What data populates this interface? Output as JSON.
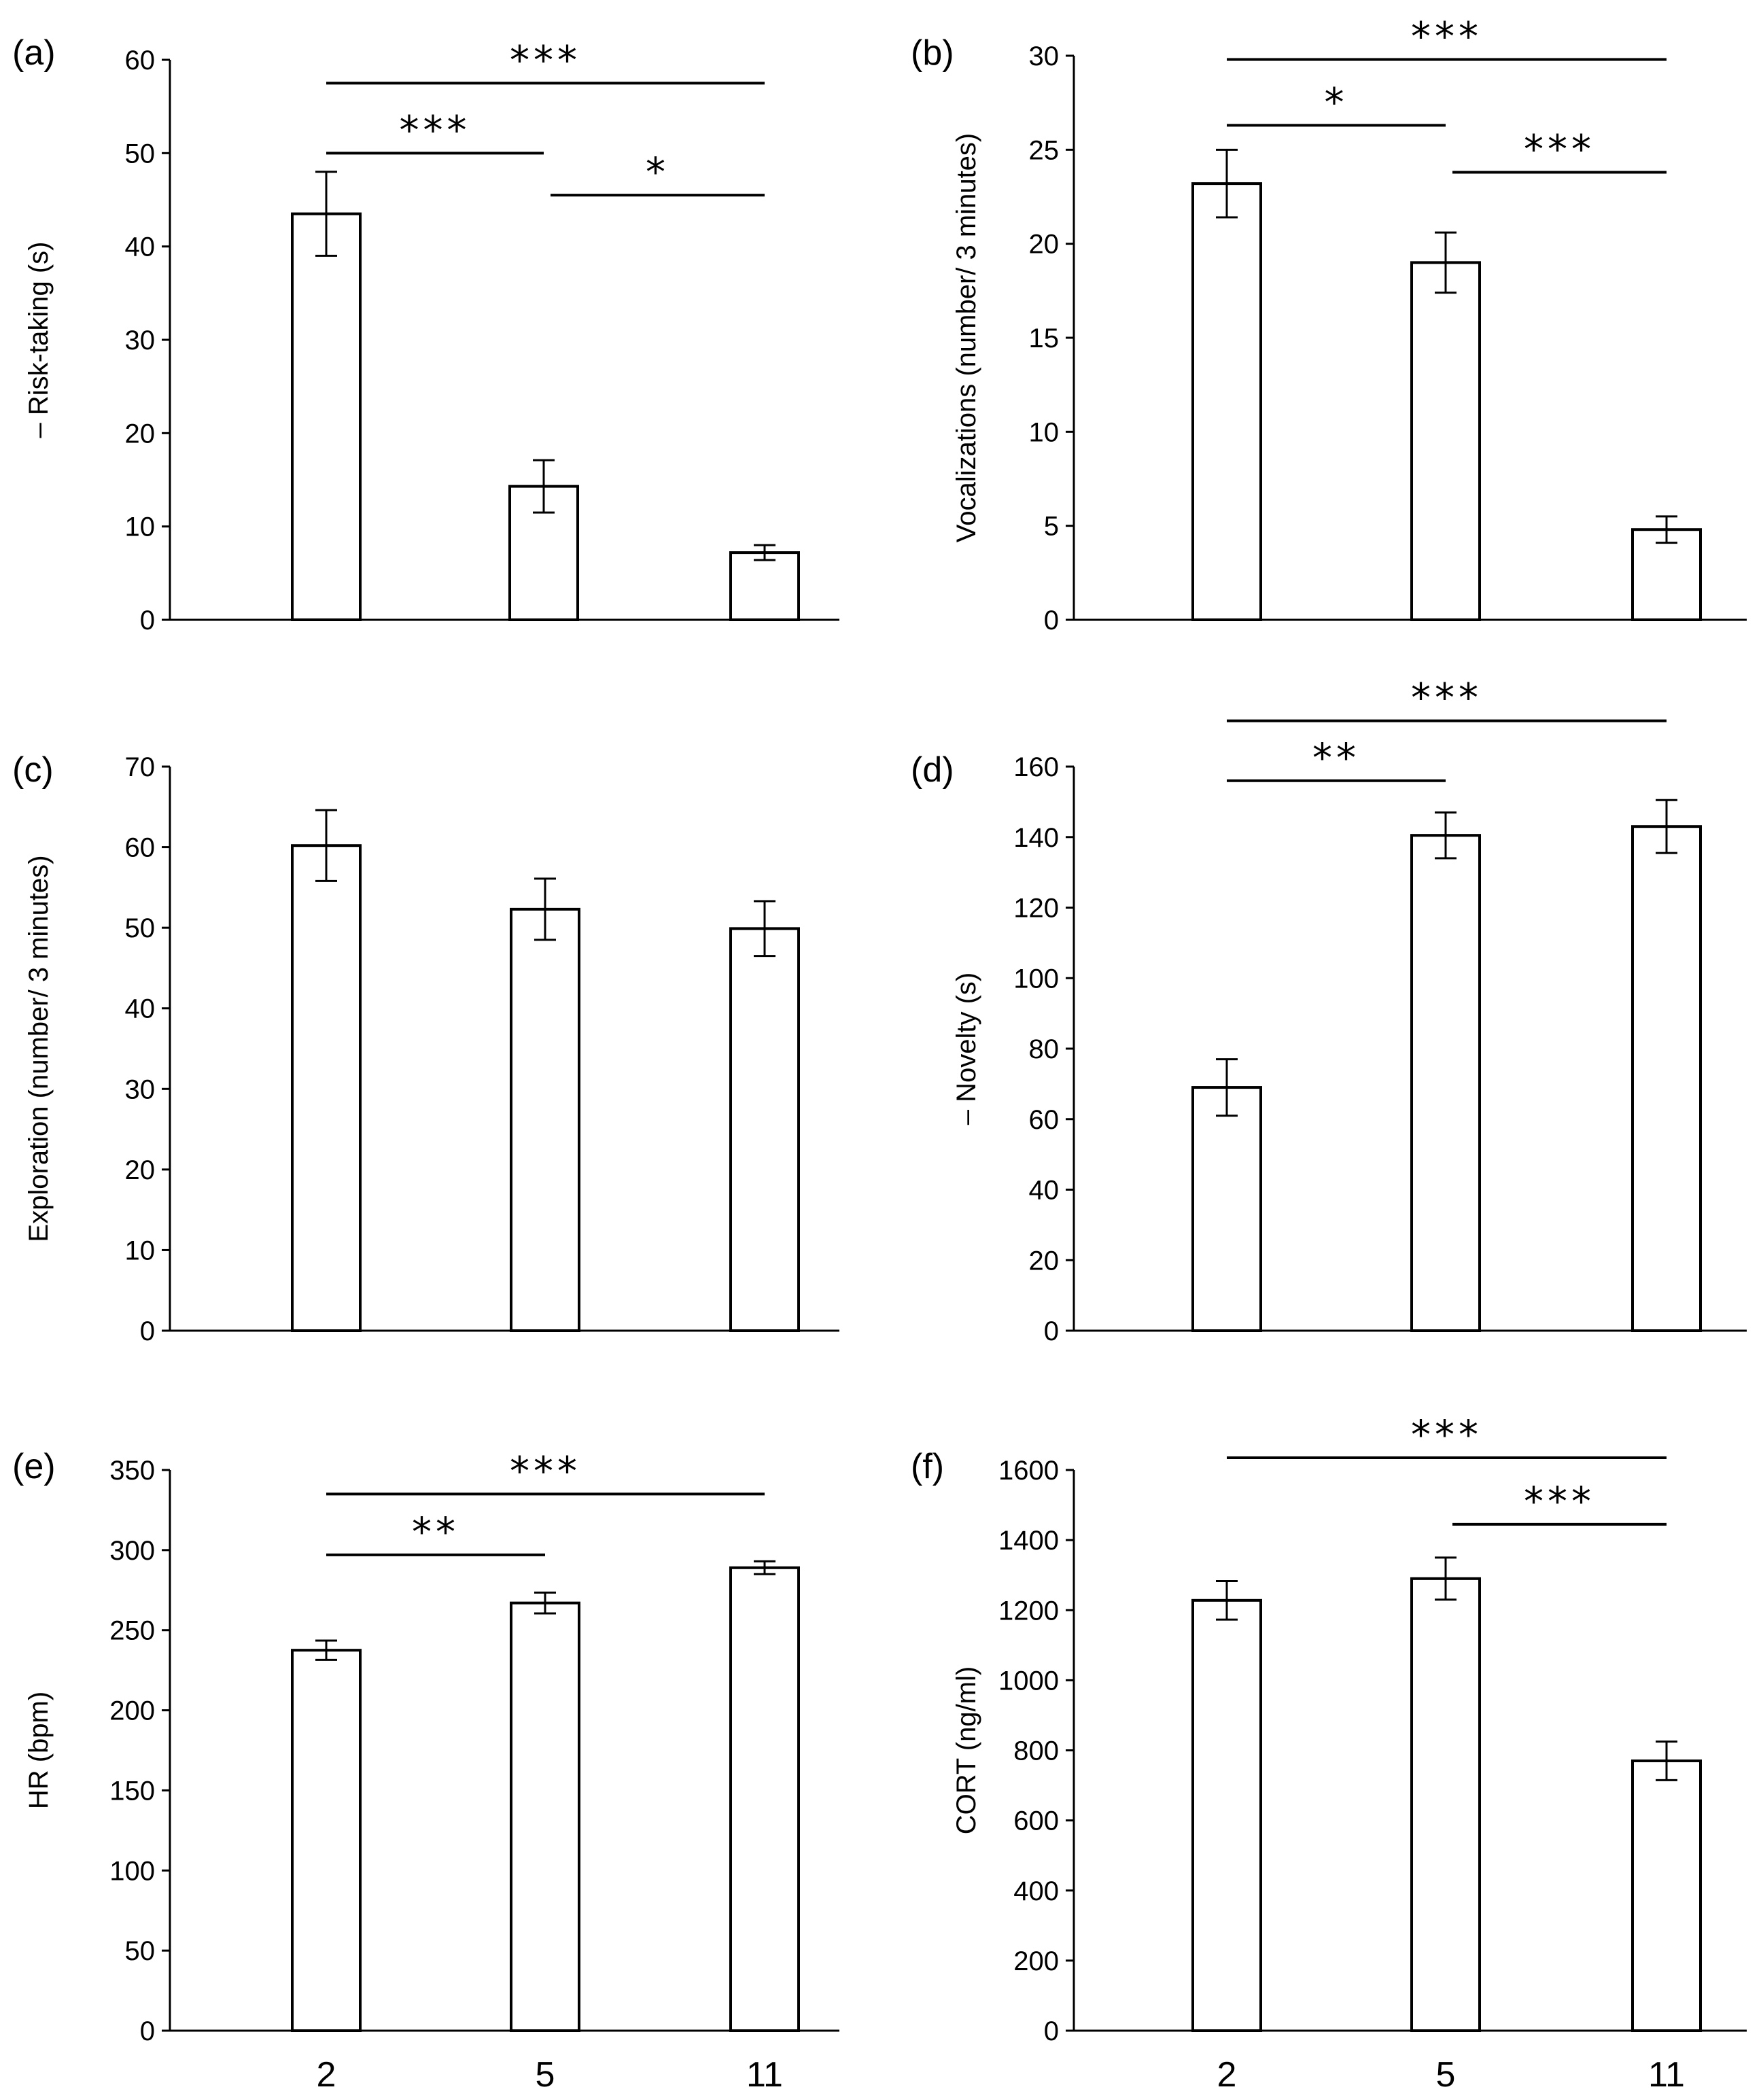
{
  "chart_data": [
    {
      "panel": "(a)",
      "type": "bar",
      "categories": [
        "2",
        "5",
        "11"
      ],
      "values": [
        43.5,
        14.3,
        7.2
      ],
      "errors": [
        4.5,
        2.8,
        0.8
      ],
      "ylabel": "– Risk-taking (s)",
      "ylim": [
        0,
        60
      ],
      "yticks": [
        0,
        10,
        20,
        30,
        40,
        50,
        60
      ],
      "significance": [
        {
          "from": 0,
          "to": 2,
          "label": "***",
          "level": 57.5
        },
        {
          "from": 0,
          "to": 1,
          "label": "***",
          "level": 50
        },
        {
          "from": 1,
          "to": 2,
          "label": "*",
          "level": 45.5
        }
      ]
    },
    {
      "panel": "(b)",
      "type": "bar",
      "categories": [
        "2",
        "5",
        "11"
      ],
      "values": [
        23.2,
        19.0,
        4.8
      ],
      "errors": [
        1.8,
        1.6,
        0.7
      ],
      "ylabel": "Vocalizations (number/ 3 minutes)",
      "ylim": [
        0,
        30
      ],
      "yticks": [
        0,
        5,
        10,
        15,
        20,
        25,
        30
      ],
      "significance": [
        {
          "from": 0,
          "to": 2,
          "label": "***",
          "level": 29.8
        },
        {
          "from": 0,
          "to": 1,
          "label": "*",
          "level": 26.3
        },
        {
          "from": 1,
          "to": 2,
          "label": "***",
          "level": 23.8
        }
      ]
    },
    {
      "panel": "(c)",
      "type": "bar",
      "categories": [
        "2",
        "5",
        "11"
      ],
      "values": [
        60.2,
        52.3,
        49.9
      ],
      "errors": [
        4.4,
        3.8,
        3.4
      ],
      "ylabel": "Exploration (number/ 3 minutes)",
      "ylim": [
        0,
        70
      ],
      "yticks": [
        0,
        10,
        20,
        30,
        40,
        50,
        60,
        70
      ],
      "significance": []
    },
    {
      "panel": "(d)",
      "type": "bar",
      "categories": [
        "2",
        "5",
        "11"
      ],
      "values": [
        69,
        140.5,
        143
      ],
      "errors": [
        8,
        6.5,
        7.5
      ],
      "ylabel": "– Novelty (s)",
      "ylim": [
        0,
        160
      ],
      "yticks": [
        0,
        20,
        40,
        60,
        80,
        100,
        120,
        140,
        160
      ],
      "significance": [
        {
          "from": 0,
          "to": 2,
          "label": "***",
          "level": 173
        },
        {
          "from": 0,
          "to": 1,
          "label": "**",
          "level": 156
        }
      ]
    },
    {
      "panel": "(e)",
      "type": "bar",
      "categories": [
        "2",
        "5",
        "11"
      ],
      "values": [
        237.5,
        267,
        289
      ],
      "errors": [
        6,
        6.5,
        4
      ],
      "ylabel": "HR (bpm)",
      "ylim": [
        0,
        350
      ],
      "yticks": [
        0,
        50,
        100,
        150,
        200,
        250,
        300,
        350
      ],
      "significance": [
        {
          "from": 0,
          "to": 2,
          "label": "***",
          "level": 335
        },
        {
          "from": 0,
          "to": 1,
          "label": "**",
          "level": 297
        }
      ]
    },
    {
      "panel": "(f)",
      "type": "bar",
      "categories": [
        "2",
        "5",
        "11"
      ],
      "values": [
        1228,
        1290,
        770
      ],
      "errors": [
        55,
        60,
        55
      ],
      "ylabel": "CORT (ng/ml)",
      "ylim": [
        0,
        1600
      ],
      "yticks": [
        0,
        200,
        400,
        600,
        800,
        1000,
        1200,
        1400,
        1600
      ],
      "significance": [
        {
          "from": 0,
          "to": 2,
          "label": "***",
          "level": 1635
        },
        {
          "from": 1,
          "to": 2,
          "label": "***",
          "level": 1445
        }
      ]
    }
  ]
}
